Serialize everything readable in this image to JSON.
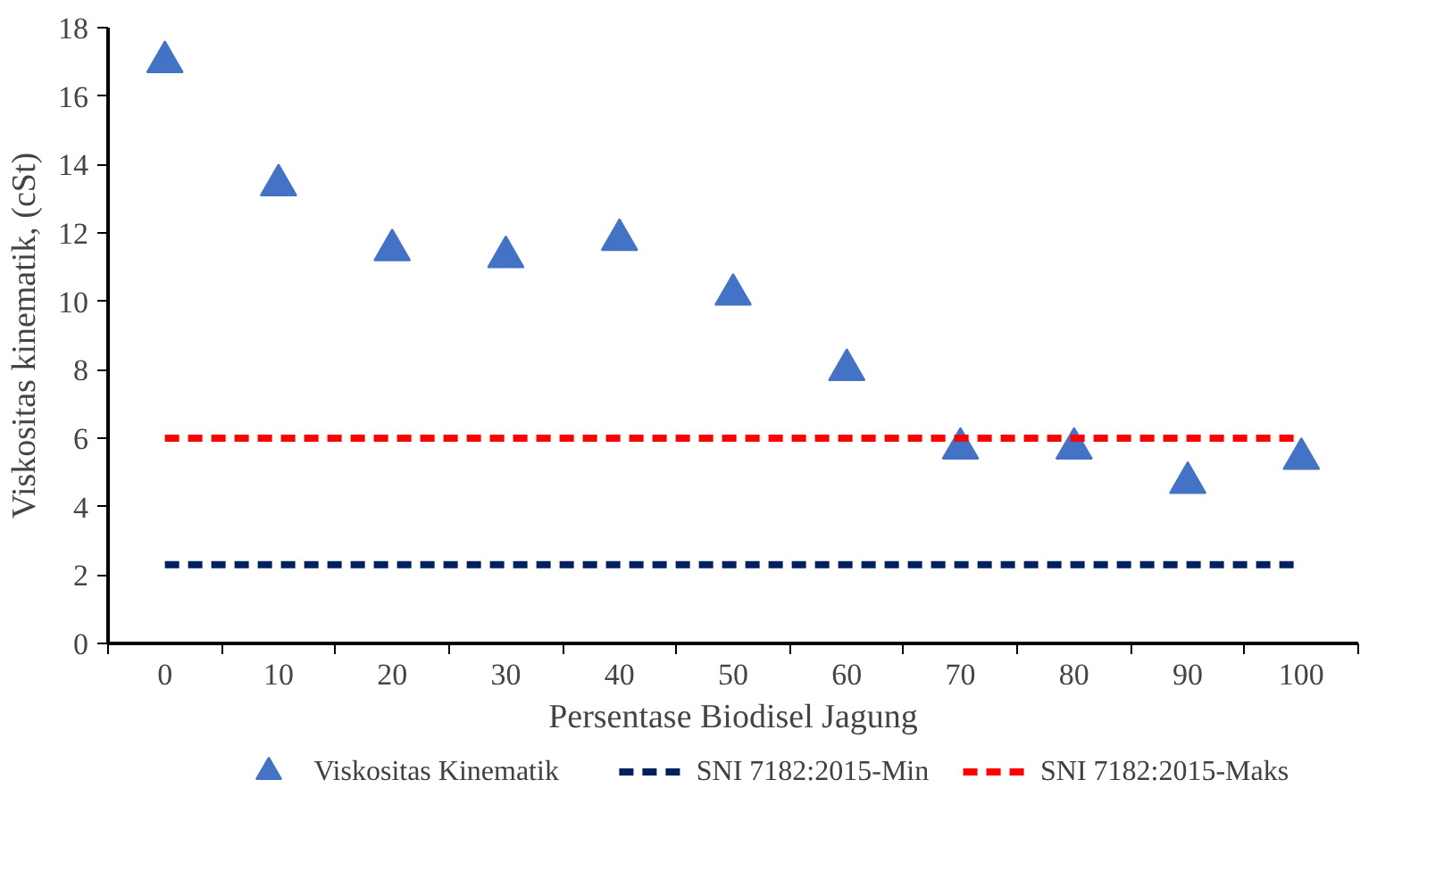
{
  "chart_data": {
    "type": "scatter",
    "xlabel": "Persentase Biodisel Jagung",
    "ylabel": "Viskositas kinematik, (cSt)",
    "categories": [
      "0",
      "10",
      "20",
      "30",
      "40",
      "50",
      "60",
      "70",
      "80",
      "90",
      "100"
    ],
    "ylim": [
      0,
      18
    ],
    "yticks": [
      0,
      2,
      4,
      6,
      8,
      10,
      12,
      14,
      16,
      18
    ],
    "grid": false,
    "legend": "bottom",
    "series": [
      {
        "name": "Viskositas Kinematik",
        "marker": "triangle",
        "color": "#4472c4",
        "values": [
          17.0,
          13.4,
          11.5,
          11.3,
          11.8,
          10.2,
          8.0,
          5.7,
          5.7,
          4.7,
          5.4
        ]
      },
      {
        "name": "SNI 7182:2015-Min",
        "type": "line",
        "line_style": "dashed",
        "color": "#002060",
        "values": [
          2.3,
          2.3,
          2.3,
          2.3,
          2.3,
          2.3,
          2.3,
          2.3,
          2.3,
          2.3,
          2.3
        ]
      },
      {
        "name": "SNI 7182:2015-Maks",
        "type": "line",
        "line_style": "dashed",
        "color": "#ff0000",
        "values": [
          6.0,
          6.0,
          6.0,
          6.0,
          6.0,
          6.0,
          6.0,
          6.0,
          6.0,
          6.0,
          6.0
        ]
      }
    ]
  }
}
